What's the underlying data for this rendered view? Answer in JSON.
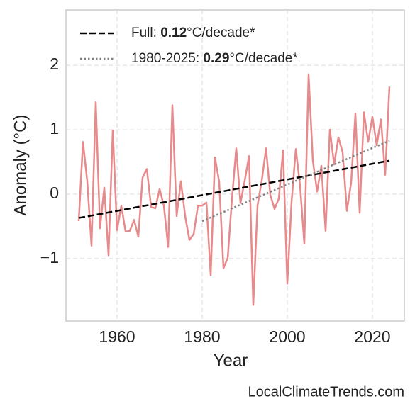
{
  "chart_data": {
    "type": "line",
    "y_label": "Anomaly (°C)",
    "x_label": "Year",
    "watermark": "LocalClimateTrends.com",
    "x": [
      1951,
      1952,
      1953,
      1954,
      1955,
      1956,
      1957,
      1958,
      1959,
      1960,
      1961,
      1962,
      1963,
      1964,
      1965,
      1966,
      1967,
      1968,
      1969,
      1970,
      1971,
      1972,
      1973,
      1974,
      1975,
      1976,
      1977,
      1978,
      1979,
      1980,
      1981,
      1982,
      1983,
      1984,
      1985,
      1986,
      1987,
      1988,
      1989,
      1990,
      1991,
      1992,
      1993,
      1994,
      1995,
      1996,
      1997,
      1998,
      1999,
      2000,
      2001,
      2002,
      2003,
      2004,
      2005,
      2006,
      2007,
      2008,
      2009,
      2010,
      2011,
      2012,
      2013,
      2014,
      2015,
      2016,
      2017,
      2018,
      2019,
      2020,
      2021,
      2022,
      2023,
      2024
    ],
    "values": [
      -0.42,
      0.81,
      0.2,
      -0.8,
      1.43,
      -0.53,
      0.1,
      -0.95,
      0.99,
      -0.56,
      -0.18,
      -0.58,
      -0.57,
      -0.4,
      -0.66,
      0.26,
      0.39,
      -0.2,
      -0.22,
      0.08,
      -0.18,
      -0.82,
      1.38,
      -0.34,
      0.2,
      -0.34,
      -0.71,
      -0.62,
      -0.18,
      -0.18,
      -0.13,
      -1.26,
      0.57,
      0.19,
      -1.15,
      -0.99,
      -0.07,
      0.71,
      -0.14,
      0.21,
      0.59,
      -1.72,
      -0.18,
      0.21,
      0.71,
      -0.01,
      -0.23,
      -0.07,
      0.68,
      -1.39,
      -0.12,
      0.7,
      0.13,
      -0.77,
      1.86,
      0.52,
      0.04,
      0.44,
      -0.57,
      1.0,
      0.46,
      0.88,
      0.65,
      -0.26,
      0.18,
      1.25,
      -0.29,
      1.27,
      0.81,
      1.2,
      0.76,
      1.16,
      0.3,
      1.67
    ],
    "color": "#e8898b",
    "trend_lines": [
      {
        "label": [
          "Full: ",
          "0.12",
          "°C/decade*"
        ],
        "color": "#000000",
        "dash": "dashed",
        "x": [
          1951,
          2024
        ],
        "values": [
          -0.37,
          0.52
        ]
      },
      {
        "label": [
          "1980-2025: ",
          "0.29",
          "°C/decade*"
        ],
        "color": "#808080",
        "dash": "dotted",
        "x": [
          1980,
          2024
        ],
        "values": [
          -0.42,
          0.83
        ]
      }
    ],
    "xlim": [
      1948,
      2027.5
    ],
    "ylim": [
      -1.97,
      2.86
    ],
    "xticks": [
      1960,
      1980,
      2000,
      2020
    ],
    "yticks": [
      {
        "value": -1,
        "label": "−1"
      },
      0,
      1,
      2
    ],
    "grid": true,
    "legend": "upper left"
  }
}
